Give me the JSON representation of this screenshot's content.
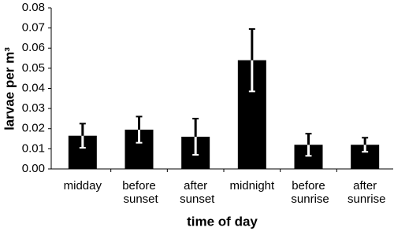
{
  "chart_data": {
    "type": "bar",
    "categories": [
      "midday",
      "before sunset",
      "after sunset",
      "midnight",
      "before sunrise",
      "after sunrise"
    ],
    "values": [
      0.0165,
      0.0195,
      0.016,
      0.054,
      0.012,
      0.012
    ],
    "errors": [
      0.006,
      0.0065,
      0.009,
      0.0155,
      0.0055,
      0.0035
    ],
    "color": "#000000",
    "x_label": "time of day",
    "y_label": "larvae per m³",
    "ylim": [
      0,
      0.08
    ],
    "yticks": [
      {
        "value": 0,
        "label": "0.00"
      },
      0.01,
      0.02,
      0.03,
      0.04,
      0.05,
      0.06,
      0.07,
      0.08
    ],
    "grid": false
  }
}
